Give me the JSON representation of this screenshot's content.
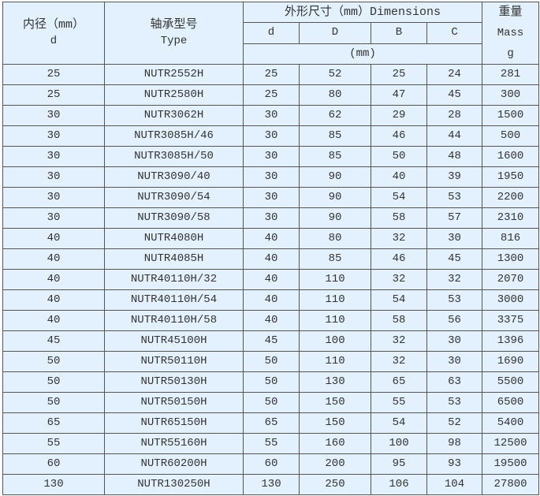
{
  "header": {
    "bore_label": "内径（mm）",
    "bore_symbol": "d",
    "type_label": "轴承型号",
    "type_en": "Type",
    "dimensions_label": "外形尺寸（mm）Dimensions",
    "dim_d": "d",
    "dim_D": "D",
    "dim_B": "B",
    "dim_C": "C",
    "dim_unit": "(mm)",
    "mass_label": "重量",
    "mass_en": "Mass",
    "mass_unit": "g"
  },
  "rows": [
    [
      "25",
      "NUTR2552H",
      "25",
      "52",
      "25",
      "24",
      "281"
    ],
    [
      "25",
      "NUTR2580H",
      "25",
      "80",
      "47",
      "45",
      "300"
    ],
    [
      "30",
      "NUTR3062H",
      "30",
      "62",
      "29",
      "28",
      "1500"
    ],
    [
      "30",
      "NUTR3085H/46",
      "30",
      "85",
      "46",
      "44",
      "500"
    ],
    [
      "30",
      "NUTR3085H/50",
      "30",
      "85",
      "50",
      "48",
      "1600"
    ],
    [
      "30",
      "NUTR3090/40",
      "30",
      "90",
      "40",
      "39",
      "1950"
    ],
    [
      "30",
      "NUTR3090/54",
      "30",
      "90",
      "54",
      "53",
      "2200"
    ],
    [
      "30",
      "NUTR3090/58",
      "30",
      "90",
      "58",
      "57",
      "2310"
    ],
    [
      "40",
      "NUTR4080H",
      "40",
      "80",
      "32",
      "30",
      "816"
    ],
    [
      "40",
      "NUTR4085H",
      "40",
      "85",
      "46",
      "45",
      "1300"
    ],
    [
      "40",
      "NUTR40110H/32",
      "40",
      "110",
      "32",
      "32",
      "2070"
    ],
    [
      "40",
      "NUTR40110H/54",
      "40",
      "110",
      "54",
      "53",
      "3000"
    ],
    [
      "40",
      "NUTR40110H/58",
      "40",
      "110",
      "58",
      "56",
      "3375"
    ],
    [
      "45",
      "NUTR45100H",
      "45",
      "100",
      "32",
      "30",
      "1396"
    ],
    [
      "50",
      "NUTR50110H",
      "50",
      "110",
      "32",
      "30",
      "1690"
    ],
    [
      "50",
      "NUTR50130H",
      "50",
      "130",
      "65",
      "63",
      "5500"
    ],
    [
      "50",
      "NUTR50150H",
      "50",
      "150",
      "55",
      "53",
      "6500"
    ],
    [
      "65",
      "NUTR65150H",
      "65",
      "150",
      "54",
      "52",
      "5400"
    ],
    [
      "55",
      "NUTR55160H",
      "55",
      "160",
      "100",
      "98",
      "12500"
    ],
    [
      "60",
      "NUTR60200H",
      "60",
      "200",
      "95",
      "93",
      "19500"
    ],
    [
      "130",
      "NUTR130250H",
      "130",
      "250",
      "106",
      "104",
      "27800"
    ]
  ]
}
